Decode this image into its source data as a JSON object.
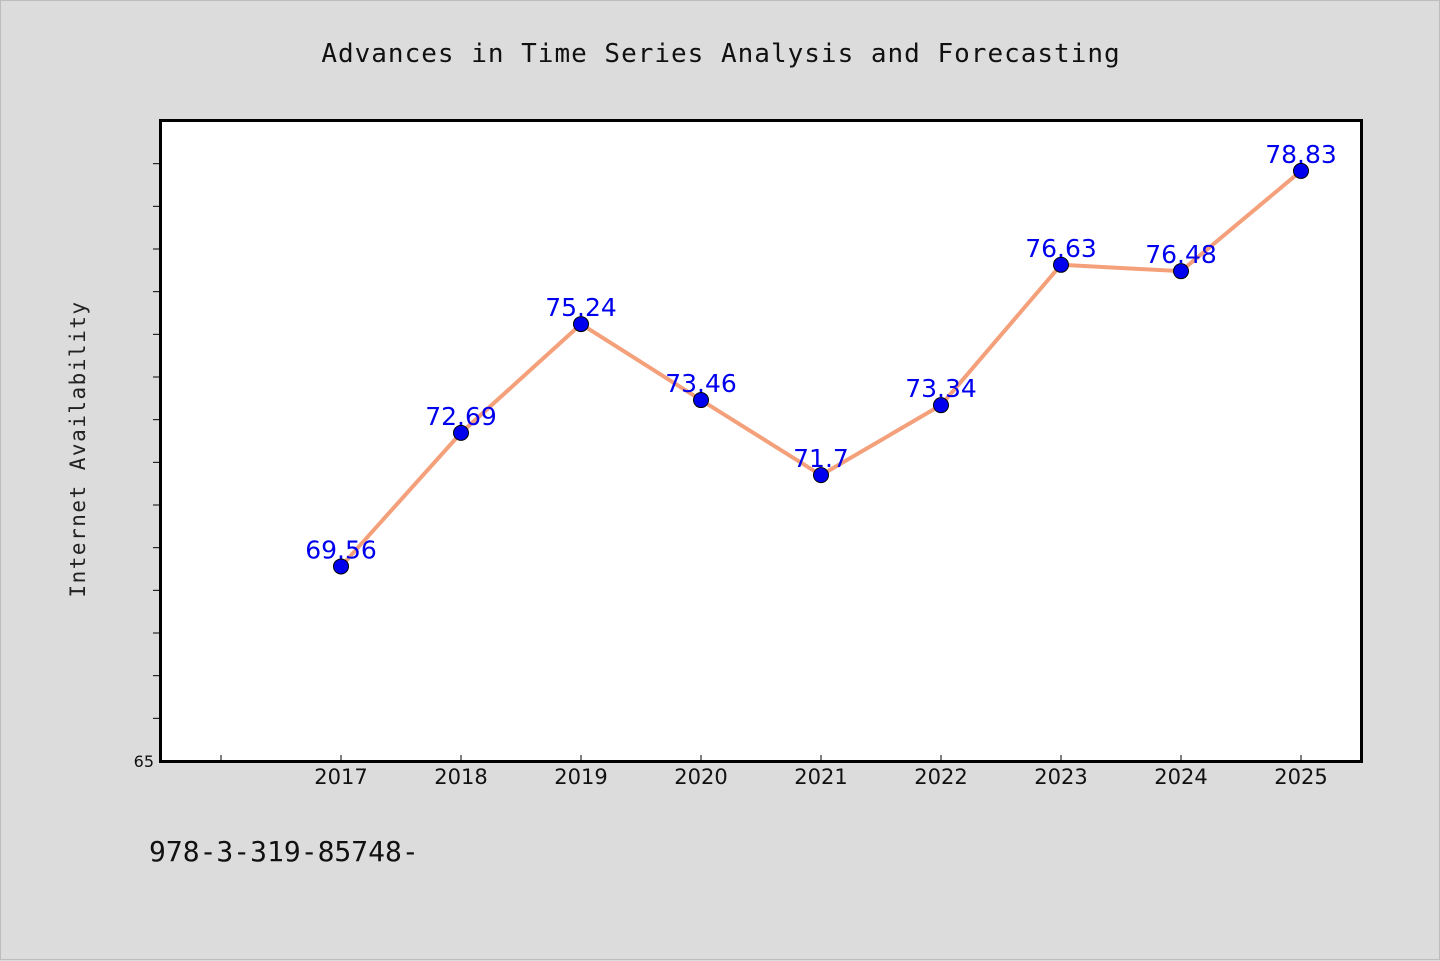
{
  "chart_data": {
    "type": "line",
    "title": "Advances in Time Series Analysis and Forecasting",
    "xlabel": "",
    "ylabel": "Internet Availability",
    "categories": [
      "2017",
      "2018",
      "2019",
      "2020",
      "2021",
      "2022",
      "2023",
      "2024",
      "2025"
    ],
    "values": [
      69.56,
      72.69,
      75.24,
      73.46,
      71.7,
      73.34,
      76.63,
      76.48,
      78.83
    ],
    "data_labels": [
      "69.56",
      "72.69",
      "75.24",
      "73.46",
      "71.7",
      "73.34",
      "76.63",
      "76.48",
      "78.83"
    ],
    "ylim": [
      65,
      80
    ],
    "yticks_labeled": [
      "65"
    ],
    "ytick_step": 1,
    "grid": false,
    "line_color": "#f4a07a",
    "marker_color": "#0000ee",
    "label_color": "#0000ee"
  },
  "footer": {
    "text": "978-3-319-85748-"
  }
}
